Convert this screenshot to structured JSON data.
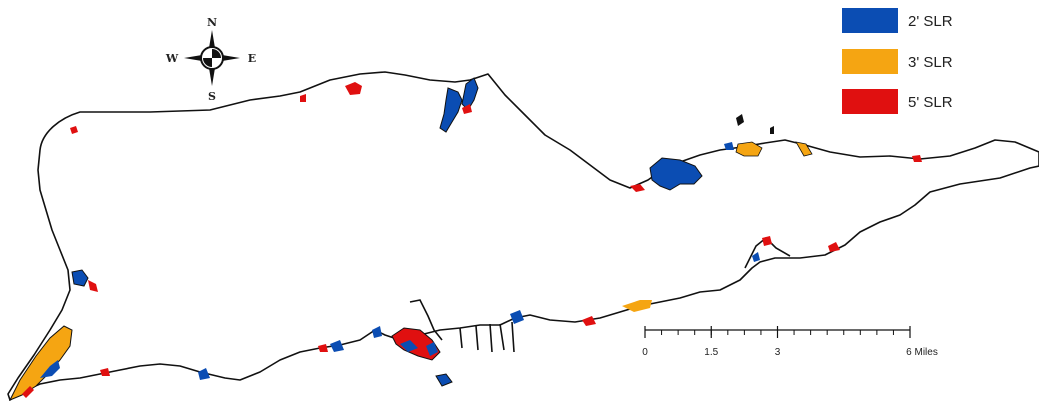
{
  "map": {
    "colors": {
      "slr2": "#0b4db3",
      "slr3": "#f5a512",
      "slr5": "#e01010",
      "land_fill": "#ffffff",
      "coast_stroke": "#111111"
    },
    "compass": {
      "n": "N",
      "s": "S",
      "e": "E",
      "w": "W"
    },
    "legend": [
      {
        "label": "2' SLR",
        "color": "#0b4db3"
      },
      {
        "label": "3' SLR",
        "color": "#f5a512"
      },
      {
        "label": "5' SLR",
        "color": "#e01010"
      }
    ],
    "scale_bar": {
      "labels": [
        "0",
        "1.5",
        "3",
        "6 Miles"
      ],
      "values_miles": [
        0,
        1.5,
        3,
        6
      ]
    }
  }
}
